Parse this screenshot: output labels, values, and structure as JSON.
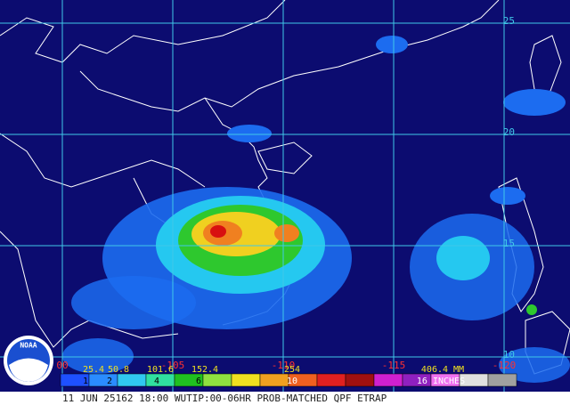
{
  "lat_labels": [
    "25",
    "20",
    "15",
    "10"
  ],
  "lon_labels": [
    "00",
    "-105",
    "-110",
    "-115",
    "-120"
  ],
  "legend": {
    "mm": [
      "25.4",
      "50.8",
      "101.6",
      "152.4",
      "254",
      "406.4 MM"
    ],
    "inches": [
      "1",
      "2",
      "4",
      "6",
      "10",
      "16 INCHES"
    ]
  },
  "logo": "NOAA",
  "footer": "11 JUN 25162 18:00 WUTIP:00-06HR PROB-MATCHED QPF ETRAP"
}
